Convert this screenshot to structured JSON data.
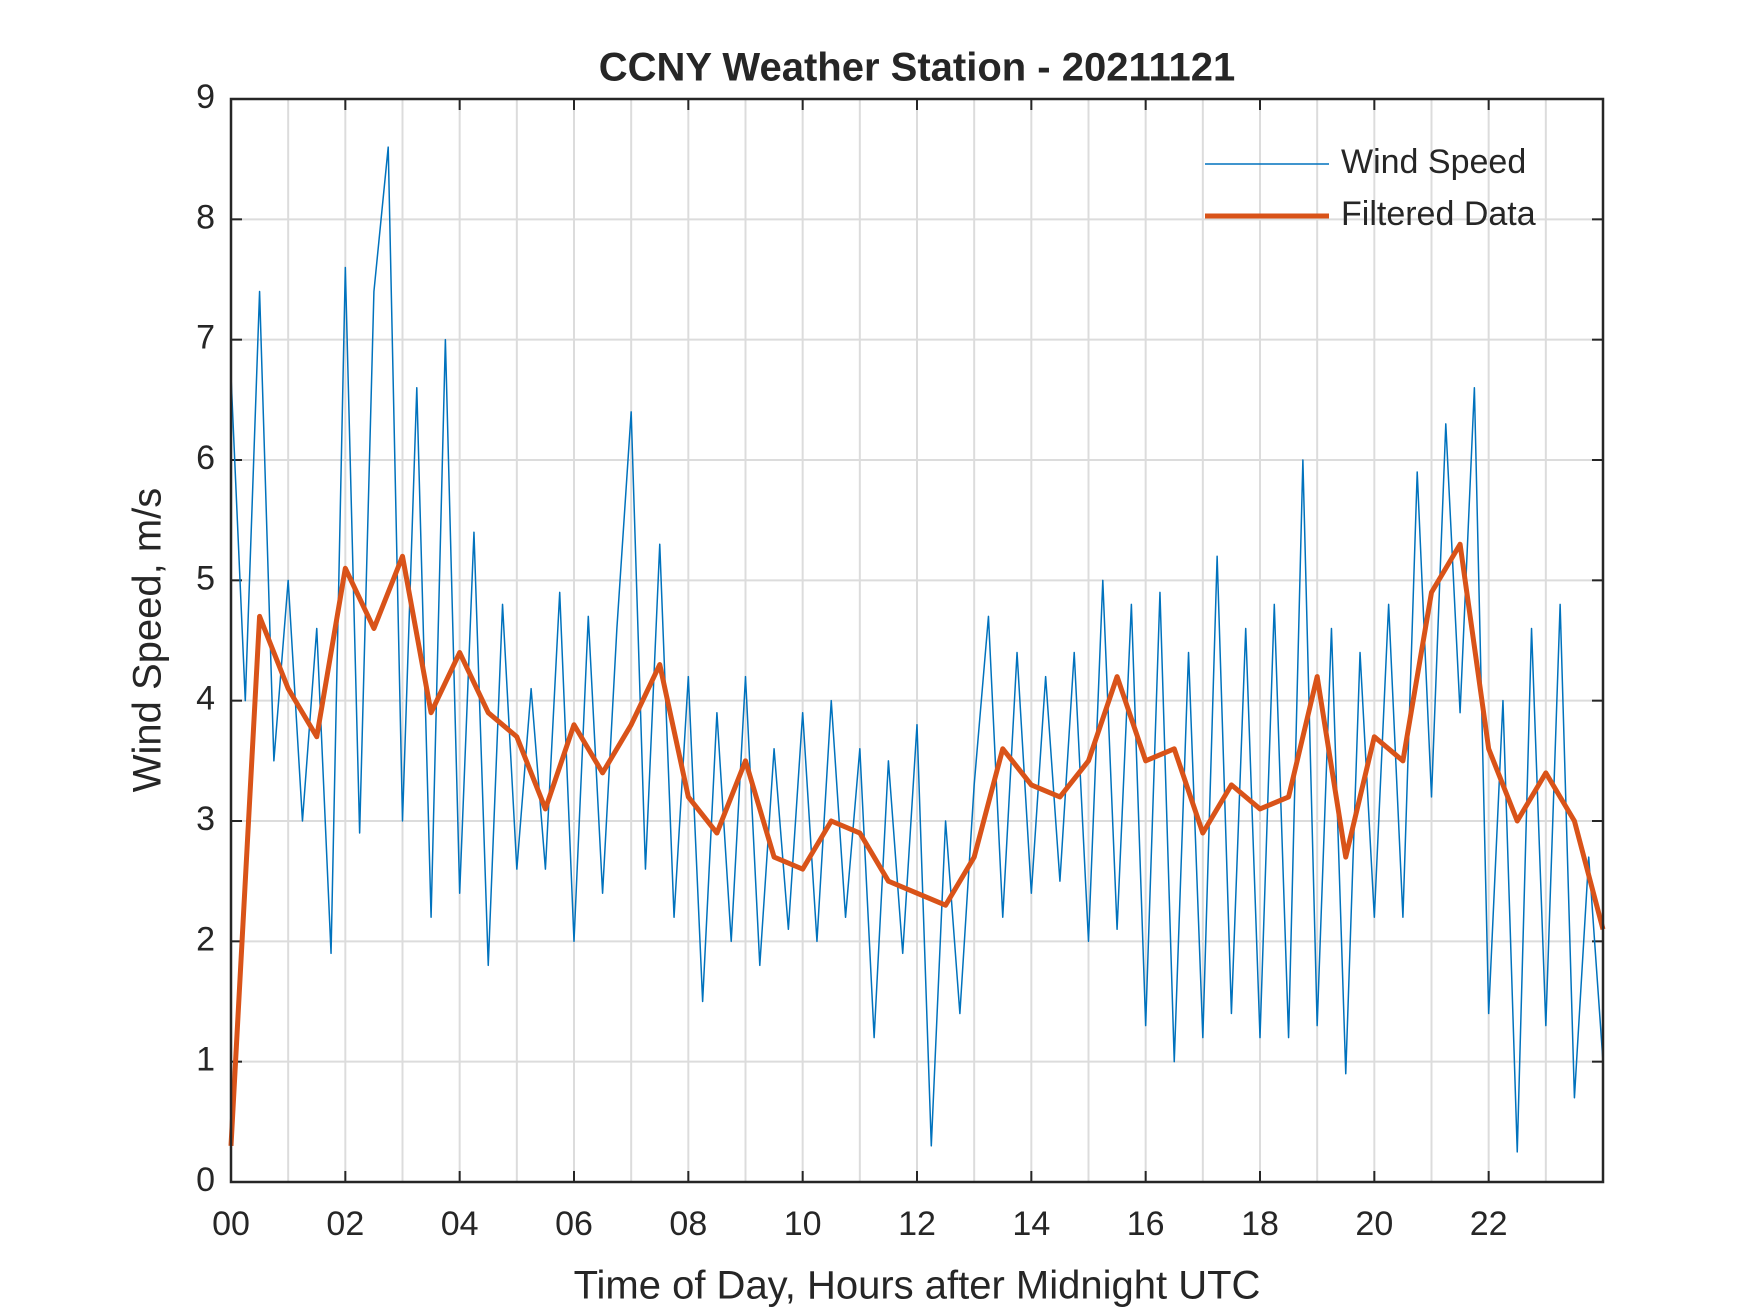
{
  "chart_data": {
    "type": "line",
    "title": "CCNY Weather Station - 20211121",
    "x_label": "Time of Day, Hours after Midnight UTC",
    "y_label": "Wind Speed, m/s",
    "xlim": [
      0,
      24
    ],
    "ylim": [
      0,
      9
    ],
    "xticks": [
      {
        "value": 0,
        "label": "00"
      },
      {
        "value": 2,
        "label": "02"
      },
      {
        "value": 4,
        "label": "04"
      },
      {
        "value": 6,
        "label": "06"
      },
      {
        "value": 8,
        "label": "08"
      },
      {
        "value": 10,
        "label": "10"
      },
      {
        "value": 12,
        "label": "12"
      },
      {
        "value": 14,
        "label": "14"
      },
      {
        "value": 16,
        "label": "16"
      },
      {
        "value": 18,
        "label": "18"
      },
      {
        "value": 20,
        "label": "20"
      },
      {
        "value": 22,
        "label": "22"
      }
    ],
    "x_minor_grid": [
      1,
      3,
      5,
      7,
      9,
      11,
      13,
      15,
      17,
      19,
      21,
      23
    ],
    "yticks": [
      0,
      1,
      2,
      3,
      4,
      5,
      6,
      7,
      8,
      9
    ],
    "grid": true,
    "legend_location": "northeast",
    "series": [
      {
        "name": "Wind Speed",
        "color": "#0072bd",
        "line_width": 1.5,
        "x": [
          0,
          0.25,
          0.5,
          0.75,
          1,
          1.25,
          1.5,
          1.75,
          2,
          2.25,
          2.5,
          2.75,
          3,
          3.25,
          3.5,
          3.75,
          4,
          4.25,
          4.5,
          4.75,
          5,
          5.25,
          5.5,
          5.75,
          6,
          6.25,
          6.5,
          6.75,
          7,
          7.25,
          7.5,
          7.75,
          8,
          8.25,
          8.5,
          8.75,
          9,
          9.25,
          9.5,
          9.75,
          10,
          10.25,
          10.5,
          10.75,
          11,
          11.25,
          11.5,
          11.75,
          12,
          12.25,
          12.5,
          12.75,
          13,
          13.25,
          13.5,
          13.75,
          14,
          14.25,
          14.5,
          14.75,
          15,
          15.25,
          15.5,
          15.75,
          16,
          16.25,
          16.5,
          16.75,
          17,
          17.25,
          17.5,
          17.75,
          18,
          18.25,
          18.5,
          18.75,
          19,
          19.25,
          19.5,
          19.75,
          20,
          20.25,
          20.5,
          20.75,
          21,
          21.25,
          21.5,
          21.75,
          22,
          22.25,
          22.5,
          22.75,
          23,
          23.25,
          23.5,
          23.75,
          24
        ],
        "values": [
          6.7,
          4.0,
          7.4,
          3.5,
          5.0,
          3.0,
          4.6,
          1.9,
          7.6,
          2.9,
          7.4,
          8.6,
          3.0,
          6.6,
          2.2,
          7.0,
          2.4,
          5.4,
          1.8,
          4.8,
          2.6,
          4.1,
          2.6,
          4.9,
          2.0,
          4.7,
          2.4,
          4.6,
          6.4,
          2.6,
          5.3,
          2.2,
          4.2,
          1.5,
          3.9,
          2.0,
          4.2,
          1.8,
          3.6,
          2.1,
          3.9,
          2.0,
          4.0,
          2.2,
          3.6,
          1.2,
          3.5,
          1.9,
          3.8,
          0.3,
          3.0,
          1.4,
          3.3,
          4.7,
          2.2,
          4.4,
          2.4,
          4.2,
          2.5,
          4.4,
          2.0,
          5.0,
          2.1,
          4.8,
          1.3,
          4.9,
          1.0,
          4.4,
          1.2,
          5.2,
          1.4,
          4.6,
          1.2,
          4.8,
          1.2,
          6.0,
          1.3,
          4.6,
          0.9,
          4.4,
          2.2,
          4.8,
          2.2,
          5.9,
          3.2,
          6.3,
          3.9,
          6.6,
          1.4,
          4.0,
          0.25,
          4.6,
          1.3,
          4.8,
          0.7,
          2.7,
          1.0
        ]
      },
      {
        "name": "Filtered Data",
        "color": "#d95319",
        "line_width": 5,
        "x": [
          0,
          0.5,
          1,
          1.5,
          2,
          2.5,
          3,
          3.5,
          4,
          4.5,
          5,
          5.5,
          6,
          6.5,
          7,
          7.5,
          8,
          8.5,
          9,
          9.5,
          10,
          10.5,
          11,
          11.5,
          12,
          12.5,
          13,
          13.5,
          14,
          14.5,
          15,
          15.5,
          16,
          16.5,
          17,
          17.5,
          18,
          18.5,
          19,
          19.5,
          20,
          20.5,
          21,
          21.5,
          22,
          22.5,
          23,
          23.5,
          24
        ],
        "values": [
          0.3,
          4.7,
          4.1,
          3.7,
          5.1,
          4.6,
          5.2,
          3.9,
          4.4,
          3.9,
          3.7,
          3.1,
          3.8,
          3.4,
          3.8,
          4.3,
          3.2,
          2.9,
          3.5,
          2.7,
          2.6,
          3.0,
          2.9,
          2.5,
          2.4,
          2.3,
          2.7,
          3.6,
          3.3,
          3.2,
          3.5,
          4.2,
          3.5,
          3.6,
          2.9,
          3.3,
          3.1,
          3.2,
          4.2,
          2.7,
          3.7,
          3.5,
          4.9,
          5.3,
          3.6,
          3.0,
          3.4,
          3.0,
          2.1
        ]
      }
    ]
  }
}
